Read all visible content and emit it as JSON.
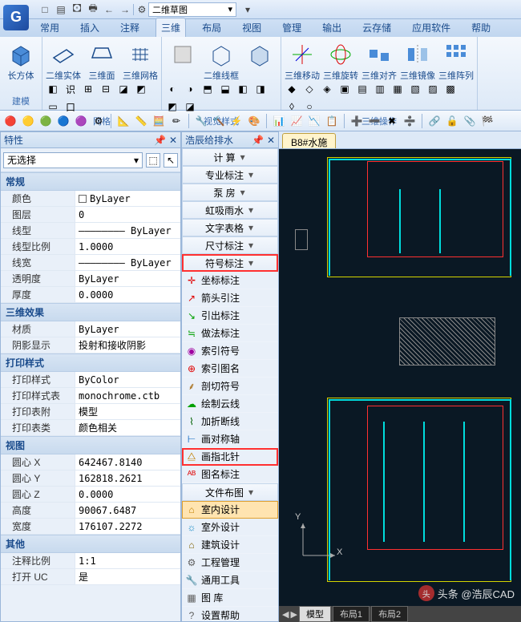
{
  "app": {
    "logo_letter": "G",
    "combo": "二维草图"
  },
  "qat": [
    "□",
    "▤",
    "🖸",
    "🖶",
    "←",
    "→"
  ],
  "tabs": [
    "常用",
    "插入",
    "注释",
    "三维",
    "布局",
    "视图",
    "管理",
    "输出",
    "云存储",
    "应用软件",
    "帮助"
  ],
  "tabs_active": 3,
  "ribbon": {
    "panels": [
      {
        "title": "建模",
        "big": [
          {
            "label": "长方体",
            "svg": "cube-blue"
          }
        ],
        "cols": 1
      },
      {
        "title": "网格",
        "big": [
          {
            "label": "二维实体",
            "svg": "plane"
          },
          {
            "label": "三维面",
            "svg": "face3d"
          },
          {
            "label": "三维网格",
            "svg": "mesh"
          }
        ],
        "small": [
          "◧",
          "识",
          "⊞",
          "⊟",
          "◪",
          "◩",
          "▭",
          "口"
        ]
      },
      {
        "title": "视觉样式",
        "big": [
          {
            "label": "",
            "svg": "shade1"
          },
          {
            "label": "二维线框",
            "svg": "wire2d"
          },
          {
            "label": "",
            "svg": "shade3"
          }
        ],
        "small": [
          "◐",
          "◑",
          "⬒",
          "⬓",
          "◧",
          "◨",
          "◩",
          "◪"
        ]
      },
      {
        "title": "三维操作",
        "big": [
          {
            "label": "三维移动",
            "svg": "move3d"
          },
          {
            "label": "三维旋转",
            "svg": "rot3d"
          },
          {
            "label": "三维对齐",
            "svg": "align3d"
          },
          {
            "label": "三维镜像",
            "svg": "mirror3d"
          },
          {
            "label": "三维阵列",
            "svg": "array3d"
          }
        ],
        "small": [
          "◆",
          "◇",
          "◈",
          "▣",
          "▤",
          "▥",
          "▦",
          "▧",
          "▨",
          "▩",
          "◊",
          "○"
        ]
      }
    ]
  },
  "quicktool": [
    "🔴",
    "🟡",
    "🟢",
    "🔵",
    "🟣",
    "⚙",
    "|",
    "📐",
    "📏",
    "🧮",
    "✏",
    "|",
    "🔧",
    "🔨",
    "⚡",
    "🎨",
    "|",
    "📊",
    "📈",
    "📉",
    "📋",
    "|",
    "➕",
    "➖",
    "✖",
    "➗",
    "|",
    "🔗",
    "🔓",
    "📎",
    "🏁"
  ],
  "props": {
    "title": "特性",
    "combo": "无选择",
    "groups": [
      {
        "name": "常规",
        "rows": [
          {
            "label": "颜色",
            "value": "ByLayer",
            "swatch": "#ffffff"
          },
          {
            "label": "图层",
            "value": "0"
          },
          {
            "label": "线型",
            "value": "———————— ByLayer"
          },
          {
            "label": "线型比例",
            "value": "1.0000"
          },
          {
            "label": "线宽",
            "value": "———————— ByLayer"
          },
          {
            "label": "透明度",
            "value": "ByLayer"
          },
          {
            "label": "厚度",
            "value": "0.0000"
          }
        ]
      },
      {
        "name": "三维效果",
        "rows": [
          {
            "label": "材质",
            "value": "ByLayer"
          },
          {
            "label": "阴影显示",
            "value": "投射和接收阴影"
          }
        ]
      },
      {
        "name": "打印样式",
        "rows": [
          {
            "label": "打印样式",
            "value": "ByColor"
          },
          {
            "label": "打印样式表",
            "value": "monochrome.ctb"
          },
          {
            "label": "打印表附",
            "value": "模型"
          },
          {
            "label": "打印表类",
            "value": "颜色相关"
          }
        ]
      },
      {
        "name": "视图",
        "rows": [
          {
            "label": "圆心 X",
            "value": "642467.8140"
          },
          {
            "label": "圆心 Y",
            "value": "162818.2621"
          },
          {
            "label": "圆心 Z",
            "value": "0.0000"
          },
          {
            "label": "高度",
            "value": "90067.6487"
          },
          {
            "label": "宽度",
            "value": "176107.2272"
          }
        ]
      },
      {
        "name": "其他",
        "rows": [
          {
            "label": "注释比例",
            "value": "1:1"
          },
          {
            "label": "打开 UC",
            "value": "是"
          }
        ]
      }
    ]
  },
  "gps": {
    "title": "浩辰给排水",
    "items": [
      {
        "label": "计  算",
        "heading": true
      },
      {
        "label": "专业标注",
        "heading": true
      },
      {
        "label": "泵  房",
        "heading": true
      },
      {
        "label": "虹吸雨水",
        "heading": true
      },
      {
        "label": "文字表格",
        "heading": true
      },
      {
        "label": "尺寸标注",
        "heading": true
      },
      {
        "label": "符号标注",
        "heading": true,
        "hl": "red"
      },
      {
        "label": "坐标标注",
        "ico": "✛",
        "c": "#e00000"
      },
      {
        "label": "箭头引注",
        "ico": "↗",
        "c": "#e00000"
      },
      {
        "label": "引出标注",
        "ico": "↘",
        "c": "#00a000"
      },
      {
        "label": "做法标注",
        "ico": "≒",
        "c": "#00a000"
      },
      {
        "label": "索引符号",
        "ico": "◉",
        "c": "#a000a0"
      },
      {
        "label": "索引图名",
        "ico": "⊕",
        "c": "#e00000"
      },
      {
        "label": "剖切符号",
        "ico": "⸙",
        "c": "#a06000"
      },
      {
        "label": "绘制云线",
        "ico": "☁",
        "c": "#00a000"
      },
      {
        "label": "加折断线",
        "ico": "⌇",
        "c": "#006000"
      },
      {
        "label": "画对称轴",
        "ico": "⊢",
        "c": "#0060c0"
      },
      {
        "label": "画指北针",
        "ico": "⧋",
        "c": "#c08000",
        "hl": "red"
      },
      {
        "label": "图名标注",
        "ico": "ᴬᴮ",
        "c": "#e00000"
      },
      {
        "label": "文件布图",
        "heading": true
      },
      {
        "label": "室内设计",
        "ico": "⌂",
        "c": "#c08000",
        "hl": "orange"
      },
      {
        "label": "室外设计",
        "ico": "☼",
        "c": "#0080c0"
      },
      {
        "label": "建筑设计",
        "ico": "⌂",
        "c": "#806000"
      },
      {
        "label": "工程管理",
        "ico": "⚙",
        "c": "#606060"
      },
      {
        "label": "通用工具",
        "ico": "🔧",
        "c": "#606060"
      },
      {
        "label": "图  库",
        "ico": "▦",
        "c": "#606060"
      },
      {
        "label": "设置帮助",
        "ico": "?",
        "c": "#606060"
      }
    ]
  },
  "canvas": {
    "tab": "B8#水施",
    "ucs": {
      "x": "X",
      "y": "Y"
    },
    "model_tabs": [
      "模型",
      "布局1",
      "布局2"
    ]
  },
  "watermark": {
    "icon": "头",
    "text": "头条 @浩辰CAD"
  }
}
